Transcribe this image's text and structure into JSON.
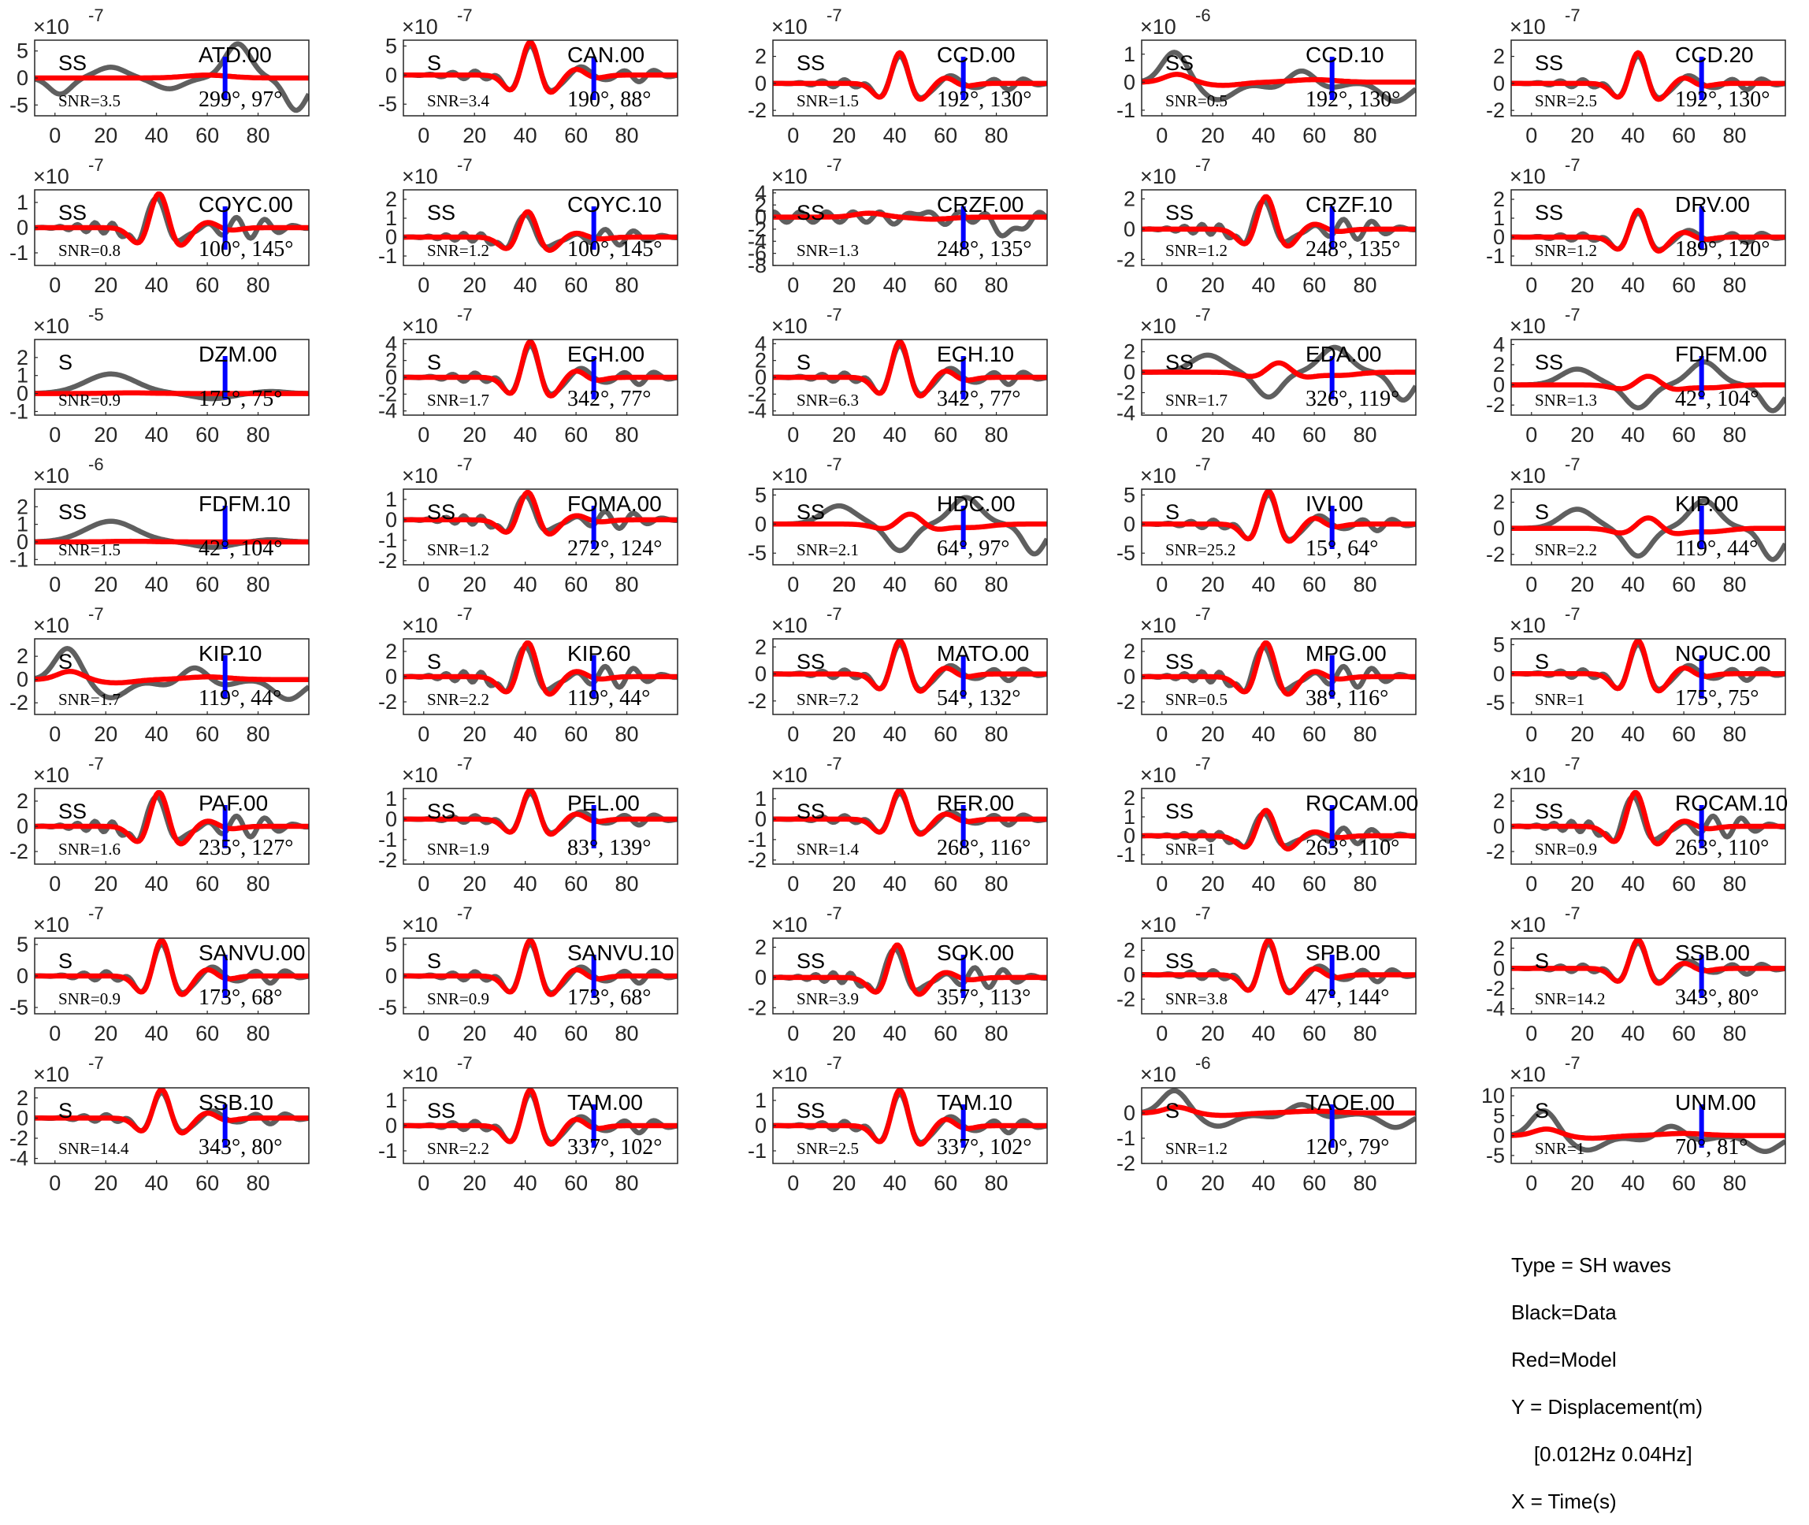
{
  "chart_data": {
    "type": "line",
    "xticks": [
      0,
      20,
      40,
      60,
      80
    ],
    "xlim": [
      -8,
      100
    ],
    "legend_series": {
      "data": "Black=Data",
      "model": "Red=Model"
    },
    "colors": {
      "data": "#5f5f5f",
      "model": "#ff0000",
      "marker": "#0000ff",
      "axis": "#262626"
    },
    "marker_time": 67,
    "panels": [
      {
        "station": "ATD.00",
        "phase": "SS",
        "snr": "SNR=3.5",
        "az": "299°, 97°",
        "exp": "-7",
        "yticks": [
          5,
          0,
          -5
        ],
        "ylim": [
          -7,
          7
        ],
        "shape": "d3"
      },
      {
        "station": "CAN.00",
        "phase": "S",
        "snr": "SNR=3.4",
        "az": "190°, 88°",
        "exp": "-7",
        "yticks": [
          5,
          0,
          -5
        ],
        "ylim": [
          -7,
          6
        ],
        "shape": "wave"
      },
      {
        "station": "CCD.00",
        "phase": "SS",
        "snr": "SNR=1.5",
        "az": "192°, 130°",
        "exp": "-7",
        "yticks": [
          2,
          0,
          -2
        ],
        "ylim": [
          -2.4,
          3.2
        ],
        "shape": "wave"
      },
      {
        "station": "CCD.10",
        "phase": "SS",
        "snr": "SNR=0.5",
        "az": "192°, 130°",
        "exp": "-6",
        "yticks": [
          1,
          0,
          -1
        ],
        "ylim": [
          -1.2,
          1.5
        ],
        "shape": "d1"
      },
      {
        "station": "CCD.20",
        "phase": "SS",
        "snr": "SNR=2.5",
        "az": "192°, 130°",
        "exp": "-7",
        "yticks": [
          2,
          0,
          -2
        ],
        "ylim": [
          -2.4,
          3.2
        ],
        "shape": "wave"
      },
      {
        "station": "COYC.00",
        "phase": "SS",
        "snr": "SNR=0.8",
        "az": "100°, 145°",
        "exp": "-7",
        "yticks": [
          1,
          0,
          -1
        ],
        "ylim": [
          -1.5,
          1.5
        ],
        "shape": "wave2"
      },
      {
        "station": "COYC.10",
        "phase": "SS",
        "snr": "SNR=1.2",
        "az": "100°, 145°",
        "exp": "-7",
        "yticks": [
          2,
          1,
          0,
          -1
        ],
        "ylim": [
          -1.5,
          2.5
        ],
        "shape": "wave2"
      },
      {
        "station": "CRZF.00",
        "phase": "SS",
        "snr": "SNR=1.3",
        "az": "248°, 135°",
        "exp": "-7",
        "yticks": [
          4,
          2,
          0,
          -2,
          -4,
          -6,
          -8
        ],
        "ylim": [
          -8,
          4.5
        ],
        "shape": "d2"
      },
      {
        "station": "CRZF.10",
        "phase": "SS",
        "snr": "SNR=1.2",
        "az": "248°, 135°",
        "exp": "-7",
        "yticks": [
          2,
          0,
          -2
        ],
        "ylim": [
          -2.4,
          2.6
        ],
        "shape": "wave2"
      },
      {
        "station": "DRV.00",
        "phase": "SS",
        "snr": "SNR=1.2",
        "az": "189°, 120°",
        "exp": "-7",
        "yticks": [
          2,
          1,
          0,
          -1
        ],
        "ylim": [
          -1.5,
          2.5
        ],
        "shape": "wave"
      },
      {
        "station": "DZM.00",
        "phase": "S",
        "snr": "SNR=0.9",
        "az": "175°, 75°",
        "exp": "-5",
        "yticks": [
          2,
          1,
          0,
          -1
        ],
        "ylim": [
          -1.2,
          3
        ],
        "shape": "d4"
      },
      {
        "station": "ECH.00",
        "phase": "S",
        "snr": "SNR=1.7",
        "az": "342°, 77°",
        "exp": "-7",
        "yticks": [
          4,
          2,
          0,
          -2,
          -4
        ],
        "ylim": [
          -4.5,
          4.5
        ],
        "shape": "wave"
      },
      {
        "station": "ECH.10",
        "phase": "S",
        "snr": "SNR=6.3",
        "az": "342°, 77°",
        "exp": "-7",
        "yticks": [
          4,
          2,
          0,
          -2,
          -4
        ],
        "ylim": [
          -4.5,
          4.5
        ],
        "shape": "wave"
      },
      {
        "station": "EDA.00",
        "phase": "SS",
        "snr": "SNR=1.7",
        "az": "326°, 119°",
        "exp": "-7",
        "yticks": [
          2,
          0,
          -2,
          -4
        ],
        "ylim": [
          -4.2,
          3.2
        ],
        "shape": "d5"
      },
      {
        "station": "FDFM.00",
        "phase": "SS",
        "snr": "SNR=1.3",
        "az": "42°, 104°",
        "exp": "-7",
        "yticks": [
          4,
          2,
          0,
          -2
        ],
        "ylim": [
          -3,
          4.5
        ],
        "shape": "d5"
      },
      {
        "station": "FDFM.10",
        "phase": "SS",
        "snr": "SNR=1.5",
        "az": "42°, 104°",
        "exp": "-6",
        "yticks": [
          2,
          1,
          0,
          -1
        ],
        "ylim": [
          -1.3,
          3
        ],
        "shape": "d4"
      },
      {
        "station": "FOMA.00",
        "phase": "SS",
        "snr": "SNR=1.2",
        "az": "272°, 124°",
        "exp": "-7",
        "yticks": [
          1,
          0,
          -1,
          -2
        ],
        "ylim": [
          -2.2,
          1.5
        ],
        "shape": "wave2"
      },
      {
        "station": "HDC.00",
        "phase": "SS",
        "snr": "SNR=2.1",
        "az": "64°, 97°",
        "exp": "-7",
        "yticks": [
          5,
          0,
          -5
        ],
        "ylim": [
          -7,
          6
        ],
        "shape": "d5"
      },
      {
        "station": "IVI.00",
        "phase": "S",
        "snr": "SNR=25.2",
        "az": "15°, 64°",
        "exp": "-7",
        "yticks": [
          5,
          0,
          -5
        ],
        "ylim": [
          -7,
          6
        ],
        "shape": "wave"
      },
      {
        "station": "KIP.00",
        "phase": "S",
        "snr": "SNR=2.2",
        "az": "119°, 44°",
        "exp": "-7",
        "yticks": [
          2,
          0,
          -2
        ],
        "ylim": [
          -2.8,
          3
        ],
        "shape": "d5"
      },
      {
        "station": "KIP.10",
        "phase": "S",
        "snr": "SNR=1.7",
        "az": "119°, 44°",
        "exp": "-7",
        "yticks": [
          2,
          0,
          -2
        ],
        "ylim": [
          -3,
          3.5
        ],
        "shape": "d1"
      },
      {
        "station": "KIP.60",
        "phase": "S",
        "snr": "SNR=2.2",
        "az": "119°, 44°",
        "exp": "-7",
        "yticks": [
          2,
          0,
          -2
        ],
        "ylim": [
          -3,
          3
        ],
        "shape": "wave2"
      },
      {
        "station": "MATO.00",
        "phase": "SS",
        "snr": "SNR=7.2",
        "az": "54°, 132°",
        "exp": "-7",
        "yticks": [
          2,
          0,
          -2
        ],
        "ylim": [
          -3,
          2.6
        ],
        "shape": "wave"
      },
      {
        "station": "MPG.00",
        "phase": "SS",
        "snr": "SNR=0.5",
        "az": "38°, 116°",
        "exp": "-7",
        "yticks": [
          2,
          0,
          -2
        ],
        "ylim": [
          -3,
          3
        ],
        "shape": "wave2"
      },
      {
        "station": "NOUC.00",
        "phase": "S",
        "snr": "SNR=1",
        "az": "175°, 75°",
        "exp": "-7",
        "yticks": [
          5,
          0,
          -5
        ],
        "ylim": [
          -7,
          6
        ],
        "shape": "wave"
      },
      {
        "station": "PAF.00",
        "phase": "SS",
        "snr": "SNR=1.6",
        "az": "235°, 127°",
        "exp": "-7",
        "yticks": [
          2,
          0,
          -2
        ],
        "ylim": [
          -3,
          3
        ],
        "shape": "wave2"
      },
      {
        "station": "PEL.00",
        "phase": "SS",
        "snr": "SNR=1.9",
        "az": "83°, 139°",
        "exp": "-7",
        "yticks": [
          1,
          0,
          -1,
          -2
        ],
        "ylim": [
          -2.2,
          1.5
        ],
        "shape": "wave"
      },
      {
        "station": "RER.00",
        "phase": "SS",
        "snr": "SNR=1.4",
        "az": "268°, 116°",
        "exp": "-7",
        "yticks": [
          1,
          0,
          -1,
          -2
        ],
        "ylim": [
          -2.2,
          1.5
        ],
        "shape": "wave"
      },
      {
        "station": "ROCAM.00",
        "phase": "SS",
        "snr": "SNR=1",
        "az": "263°, 110°",
        "exp": "-7",
        "yticks": [
          2,
          1,
          0,
          -1
        ],
        "ylim": [
          -1.5,
          2.5
        ],
        "shape": "wave2"
      },
      {
        "station": "ROCAM.10",
        "phase": "SS",
        "snr": "SNR=0.9",
        "az": "263°, 110°",
        "exp": "-7",
        "yticks": [
          2,
          0,
          -2
        ],
        "ylim": [
          -3,
          3
        ],
        "shape": "wave2"
      },
      {
        "station": "SANVU.00",
        "phase": "S",
        "snr": "SNR=0.9",
        "az": "173°, 68°",
        "exp": "-7",
        "yticks": [
          5,
          0,
          -5
        ],
        "ylim": [
          -6,
          6
        ],
        "shape": "wave"
      },
      {
        "station": "SANVU.10",
        "phase": "S",
        "snr": "SNR=0.9",
        "az": "173°, 68°",
        "exp": "-7",
        "yticks": [
          5,
          0,
          -5
        ],
        "ylim": [
          -6,
          6
        ],
        "shape": "wave"
      },
      {
        "station": "SOK.00",
        "phase": "SS",
        "snr": "SNR=3.9",
        "az": "357°, 113°",
        "exp": "-7",
        "yticks": [
          2,
          0,
          -2
        ],
        "ylim": [
          -2.4,
          2.6
        ],
        "shape": "wave2"
      },
      {
        "station": "SPB.00",
        "phase": "SS",
        "snr": "SNR=3.8",
        "az": "47°, 144°",
        "exp": "-7",
        "yticks": [
          2,
          0,
          -2
        ],
        "ylim": [
          -3.2,
          3
        ],
        "shape": "wave"
      },
      {
        "station": "SSB.00",
        "phase": "S",
        "snr": "SNR=14.2",
        "az": "343°, 80°",
        "exp": "-7",
        "yticks": [
          2,
          0,
          -2,
          -4
        ],
        "ylim": [
          -4.5,
          3
        ],
        "shape": "wave"
      },
      {
        "station": "SSB.10",
        "phase": "S",
        "snr": "SNR=14.4",
        "az": "343°, 80°",
        "exp": "-7",
        "yticks": [
          2,
          0,
          -2,
          -4
        ],
        "ylim": [
          -4.5,
          3
        ],
        "shape": "wave"
      },
      {
        "station": "TAM.00",
        "phase": "SS",
        "snr": "SNR=2.2",
        "az": "337°, 102°",
        "exp": "-7",
        "yticks": [
          1,
          0,
          -1
        ],
        "ylim": [
          -1.5,
          1.5
        ],
        "shape": "wave"
      },
      {
        "station": "TAM.10",
        "phase": "SS",
        "snr": "SNR=2.5",
        "az": "337°, 102°",
        "exp": "-7",
        "yticks": [
          1,
          0,
          -1
        ],
        "ylim": [
          -1.5,
          1.5
        ],
        "shape": "wave"
      },
      {
        "station": "TAOE.00",
        "phase": "S",
        "snr": "SNR=1.2",
        "az": "120°, 79°",
        "exp": "-6",
        "yticks": [
          0,
          -1,
          -2
        ],
        "ylim": [
          -2,
          1
        ],
        "shape": "d1"
      },
      {
        "station": "UNM.00",
        "phase": "S",
        "snr": "SNR=1",
        "az": "70°, 81°",
        "exp": "-7",
        "yticks": [
          10,
          5,
          0,
          -5
        ],
        "ylim": [
          -7,
          12
        ],
        "shape": "d1"
      }
    ]
  },
  "legend": {
    "line1": "Type = SH waves",
    "line2": "Black=Data",
    "line3": "Red=Model",
    "line4": "Y = Displacement(m)",
    "line5": "    [0.012Hz 0.04Hz]",
    "line6": "X = Time(s)"
  }
}
